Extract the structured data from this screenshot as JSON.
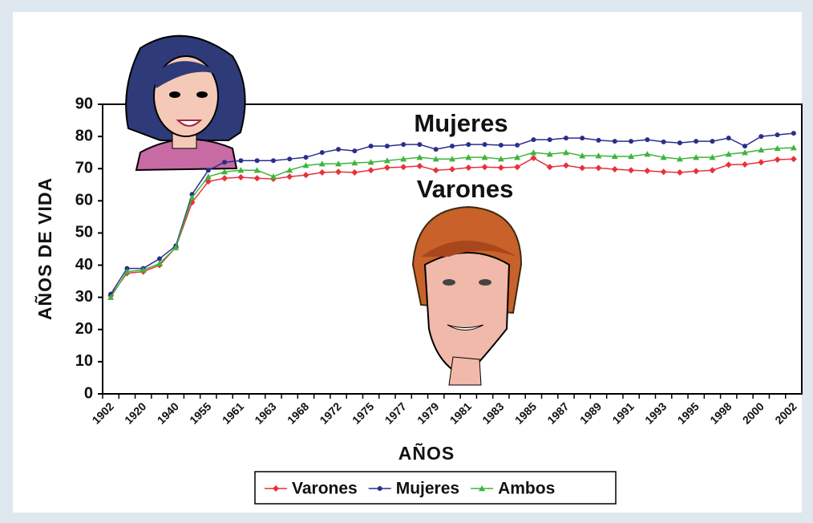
{
  "chart_data": {
    "type": "line",
    "y_label": "AÑOS DE VIDA",
    "x_label": "AÑOS",
    "annotations": [
      "Mujeres",
      "Varones"
    ],
    "categories": [
      "1902",
      null,
      "1920",
      null,
      "1940",
      null,
      "1955",
      null,
      "1961",
      null,
      "1963",
      null,
      "1968",
      null,
      "1972",
      null,
      "1975",
      null,
      "1977",
      null,
      "1979",
      null,
      "1981",
      null,
      "1983",
      null,
      "1985",
      null,
      "1987",
      null,
      "1989",
      null,
      "1991",
      null,
      "1993",
      null,
      "1995",
      null,
      "1998",
      null,
      "2000",
      null,
      "2002"
    ],
    "series": [
      {
        "name": "Varones",
        "color": "#e8313a",
        "marker": "diamond",
        "values": [
          30.5,
          37.5,
          38,
          40,
          45.5,
          59.5,
          66,
          67,
          67.3,
          67,
          66.8,
          67.5,
          68,
          68.8,
          69,
          68.8,
          69.5,
          70.3,
          70.5,
          70.8,
          69.5,
          69.8,
          70.3,
          70.5,
          70.3,
          70.5,
          73.3,
          70.5,
          71,
          70.2,
          70.2,
          69.8,
          69.5,
          69.3,
          69,
          68.8,
          69.2,
          69.5,
          71.2,
          71.3,
          72,
          72.8,
          73
        ]
      },
      {
        "name": "Mujeres",
        "color": "#2b2e8c",
        "marker": "circle",
        "values": [
          31,
          39,
          39,
          42,
          46,
          62,
          69.5,
          72,
          72.5,
          72.5,
          72.5,
          73,
          73.5,
          75,
          76,
          75.5,
          77,
          77,
          77.5,
          77.5,
          76,
          77,
          77.5,
          77.5,
          77.3,
          77.3,
          79,
          79,
          79.5,
          79.5,
          78.8,
          78.5,
          78.5,
          79,
          78.3,
          78,
          78.5,
          78.5,
          79.5,
          77,
          80,
          80.5,
          81
        ]
      },
      {
        "name": "Ambos",
        "color": "#3cb53c",
        "marker": "triangle",
        "values": [
          30,
          38,
          38.5,
          40.5,
          45.5,
          61,
          67.5,
          69,
          69.5,
          69.5,
          67.5,
          69.5,
          71,
          71.5,
          71.5,
          71.8,
          72,
          72.5,
          73,
          73.5,
          73,
          73,
          73.5,
          73.5,
          73,
          73.5,
          75,
          74.5,
          75,
          74,
          74,
          73.8,
          73.8,
          74.5,
          73.5,
          73,
          73.5,
          73.5,
          74.5,
          75,
          75.8,
          76.3,
          76.5
        ]
      }
    ],
    "ylim": [
      0,
      90
    ],
    "yticks": [
      0,
      10,
      20,
      30,
      40,
      50,
      60,
      70,
      80,
      90
    ]
  }
}
